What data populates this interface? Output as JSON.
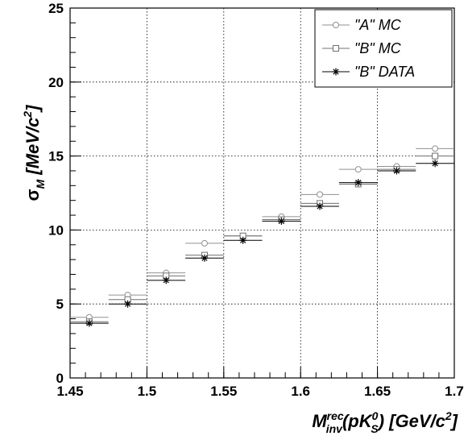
{
  "chart_data": {
    "type": "scatter",
    "xlabel": "M",
    "xlabel_sup": "rec",
    "xlabel_sub": "inv",
    "xlabel_rest": "(pK",
    "xlabel_k_sup": "0",
    "xlabel_k_sub": "S",
    "xlabel_units": ") [GeV/c",
    "xlabel_units_sup": "2",
    "xlabel_units_end": "]",
    "ylabel": "σ",
    "ylabel_sub": "M",
    "ylabel_units": " [MeV/c",
    "ylabel_units_sup": "2",
    "ylabel_units_end": "]",
    "xlim": [
      1.45,
      1.7
    ],
    "ylim": [
      0,
      25
    ],
    "x_ticks": [
      "1.45",
      "1.5",
      "1.55",
      "1.6",
      "1.65",
      "1.7"
    ],
    "x_tick_values": [
      1.45,
      1.5,
      1.55,
      1.6,
      1.65,
      1.7
    ],
    "y_ticks": [
      "0",
      "5",
      "10",
      "15",
      "20",
      "25"
    ],
    "y_tick_values": [
      0,
      5,
      10,
      15,
      20,
      25
    ],
    "grid": true,
    "legend_position": "top-right",
    "x": [
      1.4625,
      1.4875,
      1.5125,
      1.5375,
      1.5625,
      1.5875,
      1.6125,
      1.6375,
      1.6625,
      1.6875
    ],
    "x_halfwidth": 0.0125,
    "series": [
      {
        "name": "\"A\" MC",
        "marker": "circle",
        "color": "#909090",
        "values": [
          4.1,
          5.6,
          7.1,
          9.1,
          9.6,
          10.9,
          12.4,
          14.1,
          14.3,
          15.5
        ]
      },
      {
        "name": "\"B\" MC",
        "marker": "square",
        "color": "#707070",
        "values": [
          3.8,
          5.3,
          6.9,
          8.3,
          9.6,
          10.7,
          11.8,
          13.1,
          14.1,
          15.0
        ]
      },
      {
        "name": "\"B\" DATA",
        "marker": "star",
        "color": "#000000",
        "values": [
          3.7,
          5.0,
          6.6,
          8.1,
          9.3,
          10.6,
          11.6,
          13.2,
          14.0,
          14.5
        ]
      }
    ]
  }
}
